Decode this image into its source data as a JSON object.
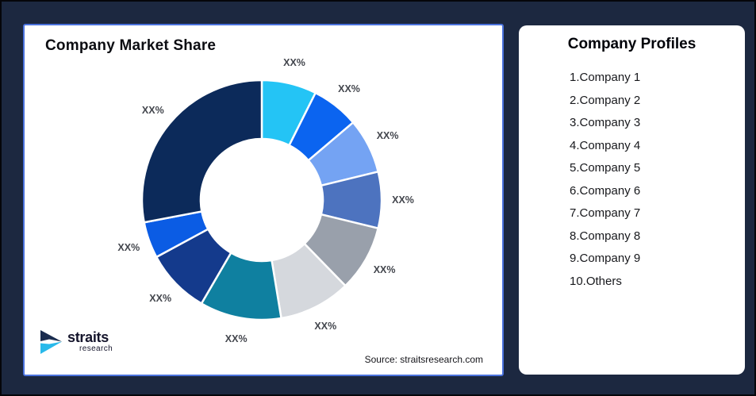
{
  "page": {
    "background_color": "#1c2840",
    "panel_accent_border_color": "#4a72dd"
  },
  "chart_panel": {
    "title": "Company Market Share",
    "source": "Source: straitsresearch.com"
  },
  "logo": {
    "brand": "straits",
    "sub": "research",
    "icon_navy": "#1b2d4f",
    "icon_cyan": "#29b9ea"
  },
  "profiles_panel": {
    "title": "Company Profiles",
    "items": [
      "1.Company 1",
      "2.Company 2",
      "3.Company 3",
      "4.Company 4",
      "5.Company 5",
      "6.Company 6",
      "7.Company 7",
      "8.Company 8",
      "9.Company 9",
      "10.Others"
    ]
  },
  "chart_data": {
    "type": "pie",
    "subtype": "donut",
    "title": "Company Market Share",
    "value_labels_shown_as_placeholder": "XX%",
    "values_estimated_from_arc_angles": true,
    "start_angle_deg": 0,
    "inner_radius_ratio": 0.51,
    "legend_position": "right-panel-list",
    "segments": [
      {
        "name": "Company 1",
        "label": "XX%",
        "value": 7.4,
        "color": "#24c4f5"
      },
      {
        "name": "Company 2",
        "label": "XX%",
        "value": 6.4,
        "color": "#0b64f0"
      },
      {
        "name": "Company 3",
        "label": "XX%",
        "value": 7.4,
        "color": "#74a3f3"
      },
      {
        "name": "Company 4",
        "label": "XX%",
        "value": 7.6,
        "color": "#4d73bf"
      },
      {
        "name": "Company 5",
        "label": "XX%",
        "value": 8.9,
        "color": "#99a0ab"
      },
      {
        "name": "Company 6",
        "label": "XX%",
        "value": 9.7,
        "color": "#d5d8dd"
      },
      {
        "name": "Company 7",
        "label": "XX%",
        "value": 11.0,
        "color": "#0f80a0"
      },
      {
        "name": "Company 8",
        "label": "XX%",
        "value": 8.7,
        "color": "#143a8c"
      },
      {
        "name": "Company 9",
        "label": "XX%",
        "value": 4.9,
        "color": "#0b5ce4"
      },
      {
        "name": "Others",
        "label": "XX%",
        "value": 28.0,
        "color": "#0c2a5a"
      }
    ]
  }
}
